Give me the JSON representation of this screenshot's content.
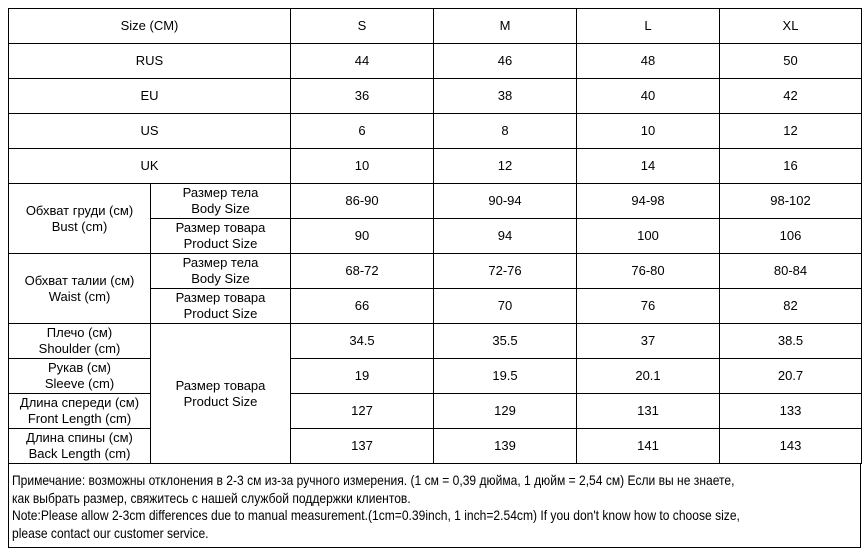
{
  "header": {
    "label": "Size (CM)",
    "sizes": [
      "S",
      "M",
      "L",
      "XL"
    ]
  },
  "simple_rows": [
    {
      "label": "RUS",
      "values": [
        "44",
        "46",
        "48",
        "50"
      ]
    },
    {
      "label": "EU",
      "values": [
        "36",
        "38",
        "40",
        "42"
      ]
    },
    {
      "label": "US",
      "values": [
        "6",
        "8",
        "10",
        "12"
      ]
    },
    {
      "label": "UK",
      "values": [
        "10",
        "12",
        "14",
        "16"
      ]
    }
  ],
  "sublabels": {
    "body_ru": "Размер тела",
    "body_en": "Body Size",
    "product_ru": "Размер товара",
    "product_en": "Product Size"
  },
  "bust": {
    "ru": "Обхват груди (см)",
    "en": "Bust (cm)",
    "body": [
      "86-90",
      "90-94",
      "94-98",
      "98-102"
    ],
    "product": [
      "90",
      "94",
      "100",
      "106"
    ]
  },
  "waist": {
    "ru": "Обхват талии (см)",
    "en": "Waist (cm)",
    "body": [
      "68-72",
      "72-76",
      "76-80",
      "80-84"
    ],
    "product": [
      "66",
      "70",
      "76",
      "82"
    ]
  },
  "product_rows": [
    {
      "ru": "Плечо (см)",
      "en": "Shoulder (cm)",
      "values": [
        "34.5",
        "35.5",
        "37",
        "38.5"
      ]
    },
    {
      "ru": "Рукав (см)",
      "en": "Sleeve (cm)",
      "values": [
        "19",
        "19.5",
        "20.1",
        "20.7"
      ]
    },
    {
      "ru": "Длина спереди (см)",
      "en": "Front Length (cm)",
      "values": [
        "127",
        "129",
        "131",
        "133"
      ]
    },
    {
      "ru": "Длина спины (см)",
      "en": "Back Length (cm)",
      "values": [
        "137",
        "139",
        "141",
        "143"
      ]
    }
  ],
  "note": {
    "lines": [
      "Примечание: возможны отклонения в 2-3 см из-за ручного измерения. (1 см = 0,39 дюйма, 1 дюйм = 2,54 см) Если вы не знаете,",
      "как выбрать размер, свяжитесь с нашей службой поддержки клиентов.",
      "Note:Please allow 2-3cm differences due to manual measurement.(1cm=0.39inch, 1 inch=2.54cm) If you don't know how to choose size,",
      "please contact our customer service."
    ]
  }
}
